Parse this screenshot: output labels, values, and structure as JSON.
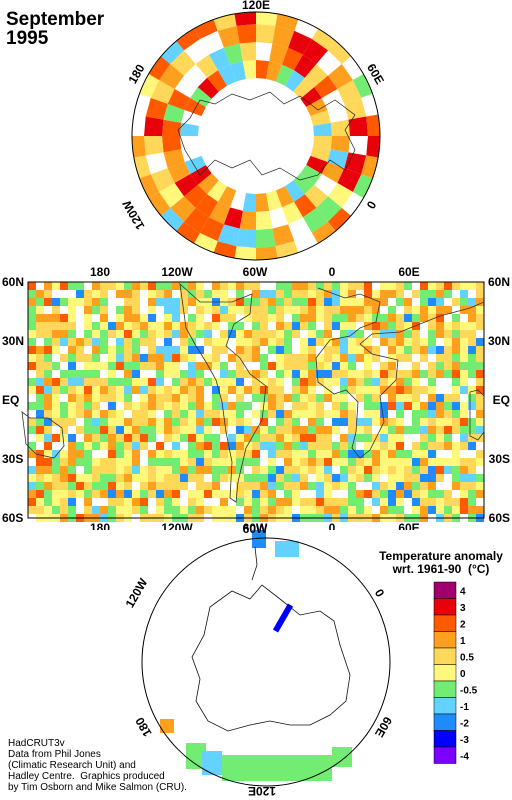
{
  "title": {
    "month": "September",
    "year": "1995"
  },
  "colors": {
    "4": "#a0006e",
    "3": "#e8000b",
    "2": "#ff5a00",
    "1": "#ff9f1e",
    "0.5": "#ffd85a",
    "0": "#fff87a",
    "-0.5": "#73ec73",
    "-1": "#64d2ff",
    "-2": "#1e8cff",
    "-3": "#0000ff",
    "-4": "#7d00ff"
  },
  "map": {
    "lat_labels": [
      "60N",
      "30N",
      "EQ",
      "30S",
      "60S"
    ],
    "lon_labels": [
      "180",
      "120W",
      "60W",
      "0",
      "60E"
    ]
  },
  "north_polar": {
    "labels": [
      "120E",
      "60E",
      "0",
      "120W",
      "180"
    ]
  },
  "south_polar": {
    "labels": [
      "60W",
      "0",
      "60E",
      "120E",
      "180",
      "120W"
    ]
  },
  "legend": {
    "title": "Temperature anomaly\nwrt. 1961-90  (°C)",
    "ticks": [
      "4",
      "3",
      "2",
      "1",
      "0.5",
      "0",
      "-0.5",
      "-1",
      "-2",
      "-3",
      "-4"
    ]
  },
  "credit": "HadCRUT3v\nData from Phil Jones\n(Climatic Research Unit) and\nHadley Centre.  Graphics produced\nby Tim Osborn and Mike Salmon (CRU)."
}
